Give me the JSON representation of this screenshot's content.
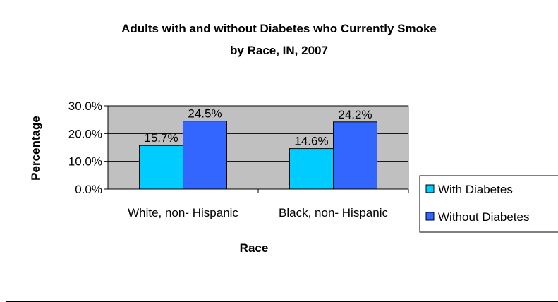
{
  "chart_data": {
    "type": "bar",
    "title": "Adults with and without Diabetes who Currently Smoke",
    "subtitle": "by Race, IN, 2007",
    "xlabel": "Race",
    "ylabel": "Percentage",
    "categories": [
      "White, non- Hispanic",
      "Black, non- Hispanic"
    ],
    "series": [
      {
        "name": "With Diabetes",
        "values": [
          15.7,
          14.6
        ],
        "labels": [
          "15.7%",
          "14.6%"
        ],
        "color": "#00ccff"
      },
      {
        "name": "Without Diabetes",
        "values": [
          24.5,
          24.2
        ],
        "labels": [
          "24.5%",
          "24.2%"
        ],
        "color": "#3366ff"
      }
    ],
    "ylim": [
      0,
      30
    ],
    "yticks": [
      0,
      10,
      20,
      30
    ],
    "ytick_labels": [
      "0.0%",
      "10.0%",
      "20.0%",
      "30.0%"
    ],
    "plot_background": "#c0c0c0",
    "grid": true,
    "legend_position": "right"
  }
}
